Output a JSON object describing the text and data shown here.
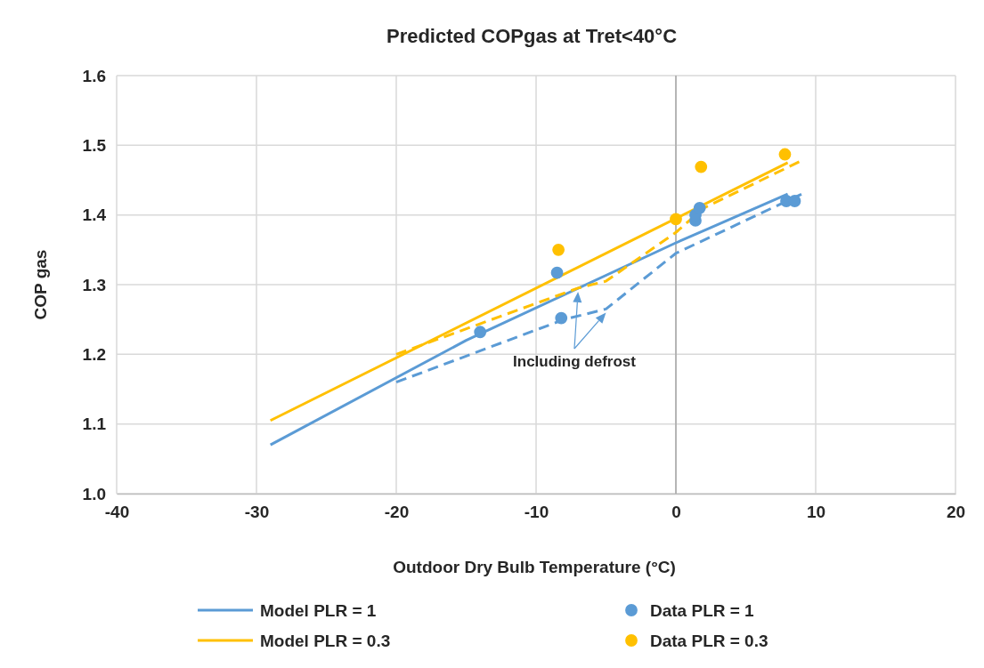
{
  "chart_data": {
    "type": "line",
    "title": "Predicted COPgas at Tret<40°C",
    "xlabel": "Outdoor Dry Bulb Temperature (°C)",
    "ylabel": "COP gas",
    "xlim": [
      -40,
      20
    ],
    "xticks": [
      -40,
      -30,
      -20,
      -10,
      0,
      10,
      20
    ],
    "ylim": [
      1.0,
      1.6
    ],
    "yticks": [
      {
        "value": 1.0,
        "label": "1.0"
      },
      1.1,
      1.2,
      1.3,
      1.4,
      1.5,
      1.6
    ],
    "grid": true,
    "legend": "bottom",
    "series": [
      {
        "name": "Model PLR = 1",
        "color": "#5b9bd5",
        "line_style": "solid",
        "x": [
          -29,
          -15,
          0,
          8
        ],
        "values": [
          1.07,
          1.22,
          1.36,
          1.43
        ]
      },
      {
        "name": "Model PLR = 0.3",
        "color": "#ffc000",
        "line_style": "solid",
        "x": [
          -29,
          8
        ],
        "values": [
          1.105,
          1.475
        ]
      },
      {
        "color": "#5b9bd5",
        "line_style": "dashed",
        "x": [
          -20,
          -8,
          -5,
          0,
          9
        ],
        "values": [
          1.16,
          1.25,
          1.265,
          1.345,
          1.43
        ]
      },
      {
        "color": "#ffc000",
        "line_style": "dashed",
        "x": [
          -20,
          -7,
          -5,
          0,
          2,
          9
        ],
        "values": [
          1.2,
          1.295,
          1.305,
          1.375,
          1.41,
          1.478
        ]
      },
      {
        "name": "Data PLR = 1",
        "type": "scatter",
        "color": "#5b9bd5",
        "marker": "circle",
        "x": [
          -14,
          -8.5,
          -8.2,
          1.4,
          1.4,
          1.7,
          7.9,
          8.5
        ],
        "values": [
          1.232,
          1.317,
          1.252,
          1.392,
          1.4,
          1.41,
          1.42,
          1.42
        ]
      },
      {
        "name": "Data PLR = 0.3",
        "type": "scatter",
        "color": "#ffc000",
        "marker": "circle",
        "x": [
          -8.4,
          0,
          1.8,
          7.8
        ],
        "values": [
          1.35,
          1.394,
          1.469,
          1.487
        ]
      }
    ],
    "annotations": [
      "Including defrost"
    ]
  }
}
